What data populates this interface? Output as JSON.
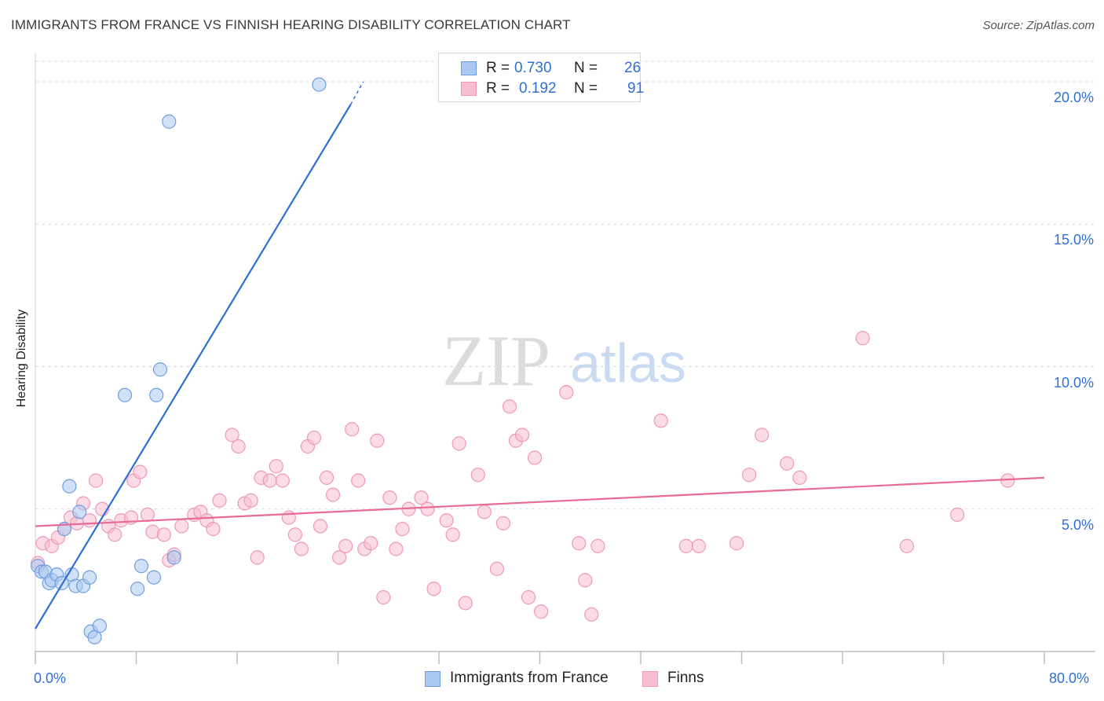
{
  "header": {
    "title": "IMMIGRANTS FROM FRANCE VS FINNISH HEARING DISABILITY CORRELATION CHART",
    "source": "Source: ZipAtlas.com"
  },
  "watermark": {
    "zip": "ZIP",
    "atlas": "atlas"
  },
  "legend_top": [
    {
      "r_label": "R =",
      "r_value": "0.730",
      "n_label": "N =",
      "n_value": "26"
    },
    {
      "r_label": "R =",
      "r_value": "0.192",
      "n_label": "N =",
      "n_value": "91"
    }
  ],
  "legend_bottom": [
    {
      "label": "Immigrants from France"
    },
    {
      "label": "Finns"
    }
  ],
  "colors": {
    "blue_fill": "#aac8f2",
    "blue_stroke": "#6f9ee0",
    "blue_line": "#2f6fd6",
    "pink_fill": "#f7bdd0",
    "pink_stroke": "#ee98b5",
    "pink_line": "#e86a96",
    "tick_text": "#2f6fd6",
    "grid": "#d9d9d9"
  },
  "chart_data": {
    "type": "scatter",
    "title": "IMMIGRANTS FROM FRANCE VS FINNISH HEARING DISABILITY CORRELATION CHART",
    "xlabel": "",
    "ylabel": "Hearing Disability",
    "xlim": [
      0,
      80
    ],
    "ylim": [
      0,
      20.8
    ],
    "x_tick_labels": [
      "0.0%",
      "80.0%"
    ],
    "y_ticks": [
      5,
      10,
      15,
      20
    ],
    "y_tick_labels": [
      "5.0%",
      "10.0%",
      "15.0%",
      "20.0%"
    ],
    "grid": "horizontal dashed",
    "legend_position": "top-center",
    "series": [
      {
        "name": "Immigrants from France",
        "color": "#aac8f2",
        "points": [
          [
            0.2,
            3.0
          ],
          [
            0.5,
            2.8
          ],
          [
            0.8,
            2.8
          ],
          [
            1.1,
            2.4
          ],
          [
            1.3,
            2.5
          ],
          [
            1.7,
            2.7
          ],
          [
            2.1,
            2.4
          ],
          [
            2.3,
            4.3
          ],
          [
            2.7,
            5.8
          ],
          [
            2.9,
            2.7
          ],
          [
            3.2,
            2.3
          ],
          [
            3.5,
            4.9
          ],
          [
            3.8,
            2.3
          ],
          [
            4.3,
            2.6
          ],
          [
            4.4,
            0.7
          ],
          [
            4.7,
            0.5
          ],
          [
            5.1,
            0.9
          ],
          [
            7.1,
            9.0
          ],
          [
            8.1,
            2.2
          ],
          [
            8.4,
            3.0
          ],
          [
            9.4,
            2.6
          ],
          [
            9.6,
            9.0
          ],
          [
            9.9,
            9.9
          ],
          [
            10.6,
            18.6
          ],
          [
            11.0,
            3.3
          ],
          [
            22.5,
            19.9
          ]
        ],
        "trend": {
          "x": [
            0.0,
            25.0
          ],
          "y": [
            0.8,
            19.2
          ],
          "extended_to": [
            26.0,
            20.0
          ]
        }
      },
      {
        "name": "Finns",
        "color": "#f7bdd0",
        "points": [
          [
            0.2,
            3.1
          ],
          [
            0.6,
            3.8
          ],
          [
            1.3,
            3.7
          ],
          [
            1.8,
            4.0
          ],
          [
            2.3,
            4.3
          ],
          [
            2.8,
            4.7
          ],
          [
            3.3,
            4.5
          ],
          [
            3.8,
            5.2
          ],
          [
            4.3,
            4.6
          ],
          [
            4.8,
            6.0
          ],
          [
            5.3,
            5.0
          ],
          [
            5.8,
            4.4
          ],
          [
            6.3,
            4.1
          ],
          [
            6.8,
            4.6
          ],
          [
            7.6,
            4.7
          ],
          [
            7.8,
            6.0
          ],
          [
            8.3,
            6.3
          ],
          [
            8.9,
            4.8
          ],
          [
            9.3,
            4.2
          ],
          [
            10.2,
            4.1
          ],
          [
            10.6,
            3.2
          ],
          [
            11.0,
            3.4
          ],
          [
            11.6,
            4.4
          ],
          [
            12.6,
            4.8
          ],
          [
            13.1,
            4.9
          ],
          [
            13.6,
            4.6
          ],
          [
            14.1,
            4.3
          ],
          [
            14.6,
            5.3
          ],
          [
            15.6,
            7.6
          ],
          [
            16.1,
            7.2
          ],
          [
            16.6,
            5.2
          ],
          [
            17.1,
            5.3
          ],
          [
            17.6,
            3.3
          ],
          [
            17.9,
            6.1
          ],
          [
            18.6,
            6.0
          ],
          [
            19.1,
            6.5
          ],
          [
            19.6,
            6.0
          ],
          [
            20.1,
            4.7
          ],
          [
            20.6,
            4.1
          ],
          [
            21.1,
            3.6
          ],
          [
            21.6,
            7.2
          ],
          [
            22.1,
            7.5
          ],
          [
            22.6,
            4.4
          ],
          [
            23.1,
            6.1
          ],
          [
            23.6,
            5.5
          ],
          [
            24.1,
            3.3
          ],
          [
            24.6,
            3.7
          ],
          [
            25.1,
            7.8
          ],
          [
            25.6,
            6.0
          ],
          [
            26.1,
            3.6
          ],
          [
            26.6,
            3.8
          ],
          [
            27.1,
            7.4
          ],
          [
            27.6,
            1.9
          ],
          [
            28.1,
            5.4
          ],
          [
            28.6,
            3.6
          ],
          [
            29.1,
            4.3
          ],
          [
            29.6,
            5.0
          ],
          [
            30.6,
            5.4
          ],
          [
            31.1,
            5.0
          ],
          [
            31.6,
            2.2
          ],
          [
            32.6,
            4.6
          ],
          [
            33.1,
            4.1
          ],
          [
            33.6,
            7.3
          ],
          [
            34.1,
            1.7
          ],
          [
            35.1,
            6.2
          ],
          [
            35.6,
            4.9
          ],
          [
            36.6,
            2.9
          ],
          [
            37.1,
            4.5
          ],
          [
            37.6,
            8.6
          ],
          [
            38.1,
            7.4
          ],
          [
            38.6,
            7.6
          ],
          [
            39.1,
            1.9
          ],
          [
            39.6,
            6.8
          ],
          [
            40.1,
            1.4
          ],
          [
            42.1,
            9.1
          ],
          [
            43.1,
            3.8
          ],
          [
            43.6,
            2.5
          ],
          [
            44.1,
            1.3
          ],
          [
            44.6,
            3.7
          ],
          [
            49.6,
            8.1
          ],
          [
            51.6,
            3.7
          ],
          [
            52.6,
            3.7
          ],
          [
            55.6,
            3.8
          ],
          [
            56.6,
            6.2
          ],
          [
            57.6,
            7.6
          ],
          [
            59.6,
            6.6
          ],
          [
            60.6,
            6.1
          ],
          [
            65.6,
            11.0
          ],
          [
            69.1,
            3.7
          ],
          [
            73.1,
            4.8
          ],
          [
            77.1,
            6.0
          ]
        ],
        "trend": {
          "x": [
            0.0,
            80.0
          ],
          "y": [
            4.4,
            6.1
          ]
        }
      }
    ]
  }
}
